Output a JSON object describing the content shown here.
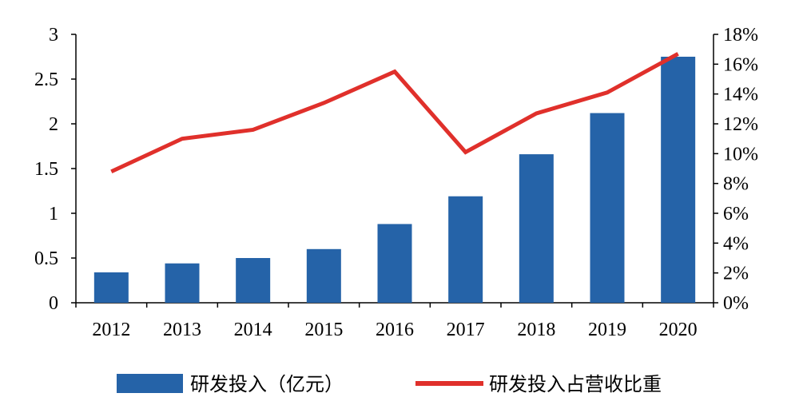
{
  "chart_data": {
    "type": "bar",
    "categories": [
      "2012",
      "2013",
      "2014",
      "2015",
      "2016",
      "2017",
      "2018",
      "2019",
      "2020"
    ],
    "series": [
      {
        "name": "研发投入（亿元）",
        "type": "bar",
        "axis": "left",
        "color": "#2563a8",
        "values": [
          0.34,
          0.44,
          0.5,
          0.6,
          0.88,
          1.19,
          1.66,
          2.12,
          2.75
        ]
      },
      {
        "name": "研发投入占营收比重",
        "type": "line",
        "axis": "right",
        "color": "#e0302b",
        "values": [
          8.8,
          11.0,
          11.6,
          13.4,
          15.5,
          10.1,
          12.7,
          14.1,
          16.7
        ]
      }
    ],
    "left_axis": {
      "ylim": [
        0,
        3
      ],
      "ticks": [
        "0",
        "0.5",
        "1",
        "1.5",
        "2",
        "2.5",
        "3"
      ]
    },
    "right_axis": {
      "ylim": [
        0,
        18
      ],
      "ticks": [
        "0%",
        "2%",
        "4%",
        "6%",
        "8%",
        "10%",
        "12%",
        "14%",
        "16%",
        "18%"
      ],
      "unit": "%"
    },
    "grid": false,
    "legend": "bottom",
    "title": "",
    "xlabel": "",
    "ylabel": ""
  }
}
